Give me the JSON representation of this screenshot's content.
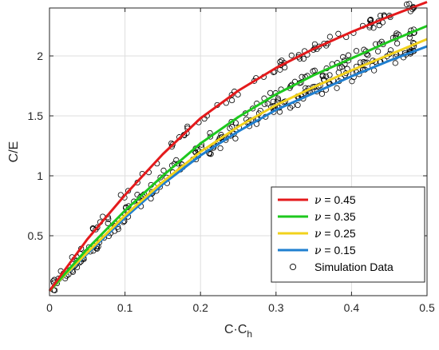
{
  "chart_data": {
    "type": "line",
    "xlabel": "C·C",
    "xlabel_sub": "h",
    "ylabel": "C/E",
    "xlim": [
      0,
      0.5
    ],
    "ylim": [
      0,
      2.4
    ],
    "xticks": [
      0,
      0.1,
      0.2,
      0.3,
      0.4,
      0.5
    ],
    "xtick_labels": [
      "0",
      "0.1",
      "0.2",
      "0.3",
      "0.4",
      "0.5"
    ],
    "yticks": [
      0.5,
      1,
      1.5,
      2
    ],
    "ytick_labels": [
      "0.5",
      "1",
      "1.5",
      "2"
    ],
    "grid": true,
    "legend_position": "bottom-right",
    "series": [
      {
        "name": "ν = 0.45",
        "nu_symbol": "ν",
        "nu_value": "0.45",
        "color": "#e41a1c",
        "x": [
          0,
          0.05,
          0.1,
          0.15,
          0.2,
          0.25,
          0.3,
          0.35,
          0.4,
          0.45,
          0.5
        ],
        "y": [
          0.04,
          0.47,
          0.84,
          1.18,
          1.48,
          1.71,
          1.9,
          2.06,
          2.2,
          2.33,
          2.45
        ]
      },
      {
        "name": "ν = 0.35",
        "nu_symbol": "ν",
        "nu_value": "0.35",
        "color": "#1ec81e",
        "x": [
          0,
          0.05,
          0.1,
          0.15,
          0.2,
          0.25,
          0.3,
          0.35,
          0.4,
          0.45,
          0.5
        ],
        "y": [
          0.04,
          0.39,
          0.71,
          1.0,
          1.27,
          1.49,
          1.68,
          1.84,
          1.98,
          2.12,
          2.25
        ]
      },
      {
        "name": "ν = 0.25",
        "nu_symbol": "ν",
        "nu_value": "0.25",
        "color": "#f2d21c",
        "x": [
          0,
          0.05,
          0.1,
          0.15,
          0.2,
          0.25,
          0.3,
          0.35,
          0.4,
          0.45,
          0.5
        ],
        "y": [
          0.04,
          0.36,
          0.67,
          0.95,
          1.2,
          1.41,
          1.59,
          1.74,
          1.88,
          2.01,
          2.14
        ]
      },
      {
        "name": "ν = 0.15",
        "nu_symbol": "ν",
        "nu_value": "0.15",
        "color": "#1f7fd0",
        "x": [
          0,
          0.05,
          0.1,
          0.15,
          0.2,
          0.25,
          0.3,
          0.35,
          0.4,
          0.45,
          0.5
        ],
        "y": [
          0.04,
          0.35,
          0.65,
          0.93,
          1.17,
          1.37,
          1.55,
          1.69,
          1.83,
          1.96,
          2.08
        ]
      }
    ],
    "scatter": {
      "name": "Simulation Data",
      "marker": "open-circle",
      "color": "#000000",
      "count_per_series": 90,
      "x_range": [
        0.005,
        0.48
      ]
    }
  }
}
